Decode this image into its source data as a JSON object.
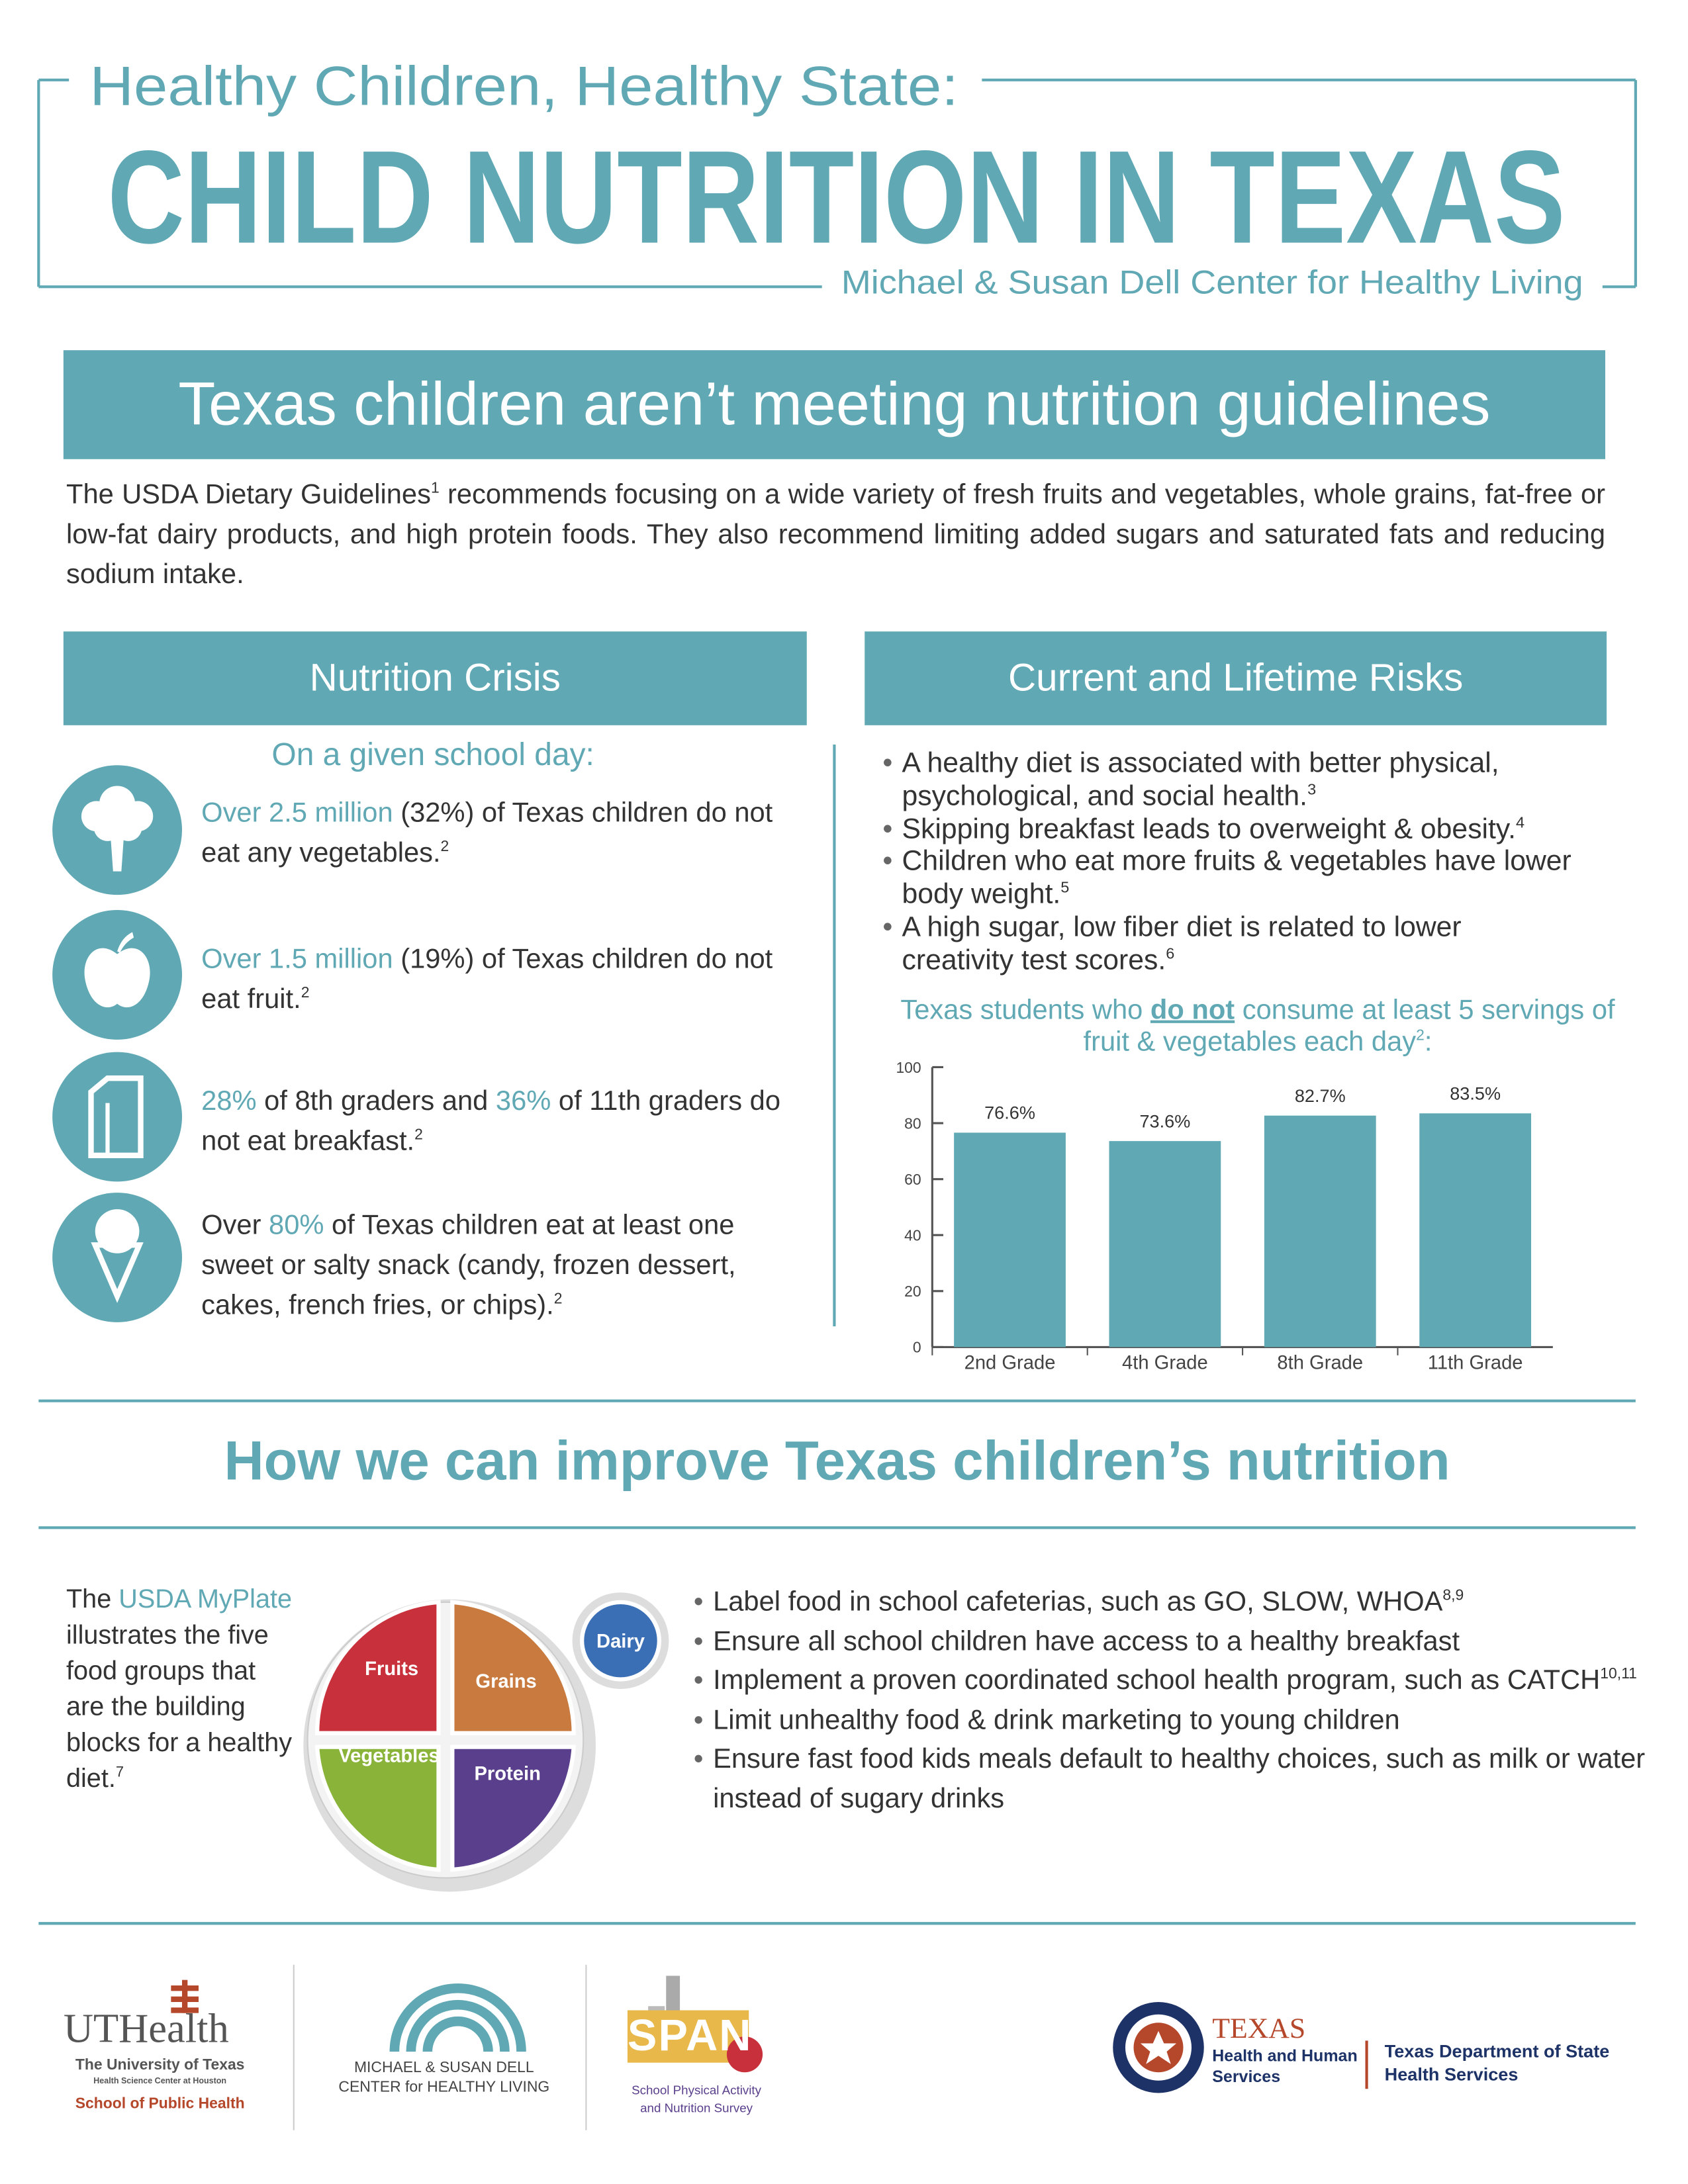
{
  "header": {
    "subtitle": "Healthy Children, Healthy State:",
    "title": "CHILD NUTRITION IN TEXAS",
    "org": "Michael & Susan Dell Center for Healthy Living"
  },
  "banner": "Texas children aren’t meeting nutrition guidelines",
  "intro": [
    {
      "text": "The USDA Dietary Guidelines"
    },
    {
      "text": "1",
      "style": "sup"
    },
    {
      "text": " recommends focusing on a wide variety of fresh fruits and vegetables, whole grains, fat-free or low-fat dairy products, and high protein foods. They also recommend limiting added sugars and saturated fats and reducing sodium intake."
    }
  ],
  "crisis": {
    "heading": "Nutrition Crisis",
    "subheading": "On a given school day:",
    "items": [
      [
        {
          "text": "Over 2.5 million",
          "style": "accent"
        },
        {
          "text": " (32%) of Texas children do not eat any vegetables."
        },
        {
          "text": "2",
          "style": "sup"
        }
      ],
      [
        {
          "text": "Over 1.5 million",
          "style": "accent"
        },
        {
          "text": " (19%) of Texas children do not eat fruit."
        },
        {
          "text": "2",
          "style": "sup"
        }
      ],
      [
        {
          "text": "28%",
          "style": "accent"
        },
        {
          "text": " of 8th graders and "
        },
        {
          "text": "36%",
          "style": "accent"
        },
        {
          "text": " of 11th graders do not eat breakfast."
        },
        {
          "text": "2",
          "style": "sup"
        }
      ],
      [
        {
          "text": "Over "
        },
        {
          "text": "80%",
          "style": "accent"
        },
        {
          "text": " of Texas children eat at least one sweet or salty snack (candy, frozen dessert, cakes, french fries, or chips)."
        },
        {
          "text": "2",
          "style": "sup"
        }
      ]
    ]
  },
  "risks": {
    "heading": "Current and Lifetime Risks",
    "bullets": [
      [
        {
          "text": "A healthy diet is associated with better physical, psychological, and social health."
        },
        {
          "text": "3",
          "style": "sup"
        }
      ],
      [
        {
          "text": "Skipping breakfast leads to overweight & obesity."
        },
        {
          "text": "4",
          "style": "sup"
        }
      ],
      [
        {
          "text": "Children who eat more fruits & vegetables have lower body weight."
        },
        {
          "text": "5",
          "style": "sup"
        }
      ],
      [
        {
          "text": "A high sugar, low fiber diet is related to lower creativity test scores."
        },
        {
          "text": "6",
          "style": "sup"
        }
      ]
    ]
  },
  "chart_data": {
    "type": "bar",
    "title_parts": [
      {
        "text": "Texas students who "
      },
      {
        "text": "do not",
        "style": "strong"
      },
      {
        "text": " consume at least 5 servings of fruit & vegetables each day"
      },
      {
        "text": "2",
        "style": "sup"
      },
      {
        "text": ":"
      }
    ],
    "categories": [
      "2nd Grade",
      "4th Grade",
      "8th Grade",
      "11th Grade"
    ],
    "values": [
      76.6,
      73.6,
      82.7,
      83.5
    ],
    "value_labels": [
      "76.6%",
      "73.6%",
      "82.7%",
      "83.5%"
    ],
    "color": "#5fa8b4",
    "ylim": [
      0,
      100
    ],
    "yticks": [
      0,
      20,
      40,
      60,
      80,
      100
    ]
  },
  "improve": {
    "heading": "How we can improve Texas children’s nutrition",
    "myplate": [
      {
        "text": "The "
      },
      {
        "text": "USDA MyPlate",
        "style": "accent"
      },
      {
        "text": " illustrates the five food groups that are the building blocks for a healthy diet."
      },
      {
        "text": "7",
        "style": "sup"
      }
    ],
    "plate": {
      "fruits": "Fruits",
      "grains": "Grains",
      "vegetables": "Vegetables",
      "protein": "Protein",
      "dairy": "Dairy"
    },
    "actions": [
      [
        {
          "text": "Label food in school cafeterias, such as GO, SLOW, WHOA"
        },
        {
          "text": "8,9",
          "style": "sup"
        }
      ],
      [
        {
          "text": "Ensure all school children have access to a healthy breakfast"
        }
      ],
      [
        {
          "text": "Implement a proven coordinated school health program, such as CATCH"
        },
        {
          "text": "10,11",
          "style": "sup"
        }
      ],
      [
        {
          "text": "Limit unhealthy food & drink marketing to young children"
        }
      ],
      [
        {
          "text": "Ensure fast food kids meals default to healthy choices, such as milk or water instead of sugary drinks"
        }
      ]
    ]
  },
  "footer": {
    "uthealth": {
      "name": "UTHealth",
      "line1": "The University of Texas",
      "line2": "Health Science Center at Houston",
      "line3": "School of Public Health"
    },
    "dell": {
      "line1": "MICHAEL & SUSAN DELL",
      "line2": "CENTER for HEALTHY LIVING"
    },
    "span": {
      "name": "SPAN",
      "line1": "School Physical Activity",
      "line2": "and Nutrition Survey"
    },
    "hhs": {
      "name": "TEXAS",
      "line1": "Health and Human",
      "line2": "Services"
    },
    "dshs": {
      "line1": "Texas Department of State",
      "line2": "Health Services"
    }
  }
}
